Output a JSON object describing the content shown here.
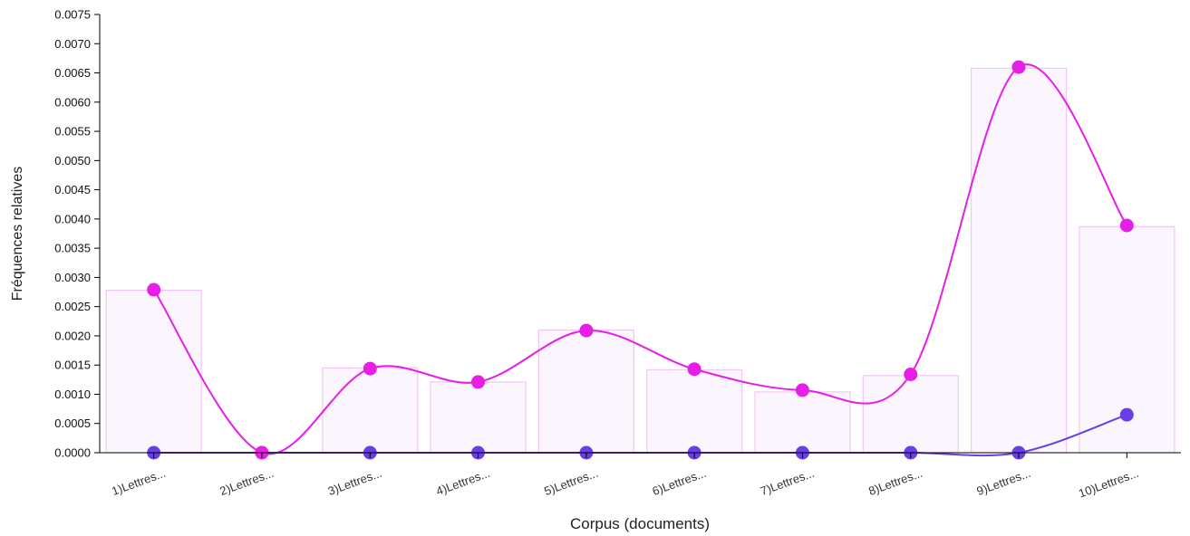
{
  "chart_data": {
    "type": "bar",
    "xlabel": "Corpus (documents)",
    "ylabel": "Fréquences relatives",
    "ylim": [
      0,
      0.0075
    ],
    "yticks": [
      "0.0000",
      "0.0005",
      "0.0010",
      "0.0015",
      "0.0020",
      "0.0025",
      "0.0030",
      "0.0035",
      "0.0040",
      "0.0045",
      "0.0050",
      "0.0055",
      "0.0060",
      "0.0065",
      "0.0070",
      "0.0075"
    ],
    "categories": [
      "1)Lettres...",
      "2)Lettres...",
      "3)Lettres...",
      "4)Lettres...",
      "5)Lettres...",
      "6)Lettres...",
      "7)Lettres...",
      "8)Lettres...",
      "9)Lettres...",
      "10)Lettres..."
    ],
    "bars": {
      "values": [
        0.00278,
        0.0,
        0.00145,
        0.00121,
        0.0021,
        0.00142,
        0.00104,
        0.00132,
        0.00658,
        0.00387
      ],
      "fill": "#fbf5fe",
      "stroke": "#f0c8f5"
    },
    "series": [
      {
        "values": [
          0.00279,
          0.0,
          0.00144,
          0.00121,
          0.00209,
          0.00143,
          0.00107,
          0.00134,
          0.0066,
          0.00389
        ],
        "color": "#e61ee6"
      },
      {
        "values": [
          0.0,
          0.0,
          0.0,
          0.0,
          0.0,
          0.0,
          0.0,
          0.0,
          0.0,
          0.00065
        ],
        "color": "#6a3de8"
      }
    ],
    "grid": false,
    "legend": "none"
  }
}
